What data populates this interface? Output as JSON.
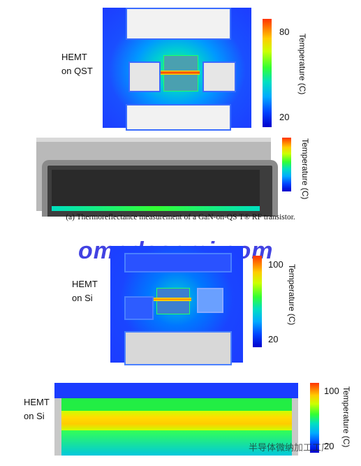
{
  "panel_a": {
    "device_label_line1": "HEMT",
    "device_label_line2": "on QST",
    "colorbar_top": "80",
    "colorbar_bottom": "20",
    "colorbar_title": "Temperature (C)",
    "strip_colorbar_title": "Temperature (C)",
    "caption": "(a) Thermoreflectance measurement of a GaN-on-QS T® RF transistor."
  },
  "panel_b": {
    "device_label_line1": "HEMT",
    "device_label_line2": "on Si",
    "colorbar_top": "100",
    "colorbar_bottom": "20",
    "colorbar_title": "Temperature (C)"
  },
  "panel_c": {
    "device_label_line1": "HEMT",
    "device_label_line2": "on Si",
    "colorbar_top": "100",
    "colorbar_bottom": "20",
    "colorbar_title": "Temperature (C)"
  },
  "watermark": {
    "main": "omedasemi.com",
    "footer": "半导体微纳加工工厂"
  },
  "colors": {
    "accent_blue": "#0044ff",
    "hot": "#ff3300",
    "watermark": "#2222dd"
  }
}
